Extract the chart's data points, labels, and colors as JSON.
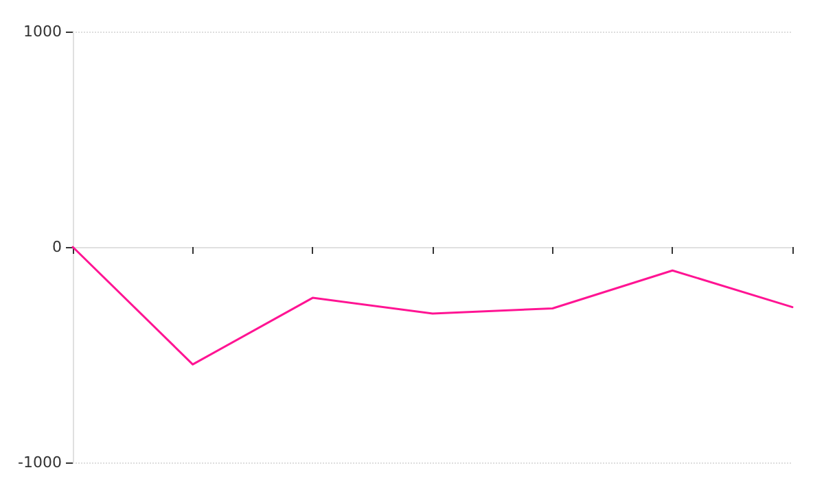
{
  "chart_data": {
    "type": "line",
    "categories": [
      null,
      null,
      null,
      null,
      null,
      null,
      null
    ],
    "series": [
      {
        "color": "#ff1493",
        "values": [
          0,
          -545,
          -236,
          -309,
          -285,
          -109,
          -279
        ]
      }
    ],
    "ylim": [
      -1000,
      1000
    ],
    "yticks": [
      -1000,
      0,
      1000
    ],
    "tick_labels": "y",
    "grid": "y",
    "marker": "none",
    "line_style": "solid"
  }
}
